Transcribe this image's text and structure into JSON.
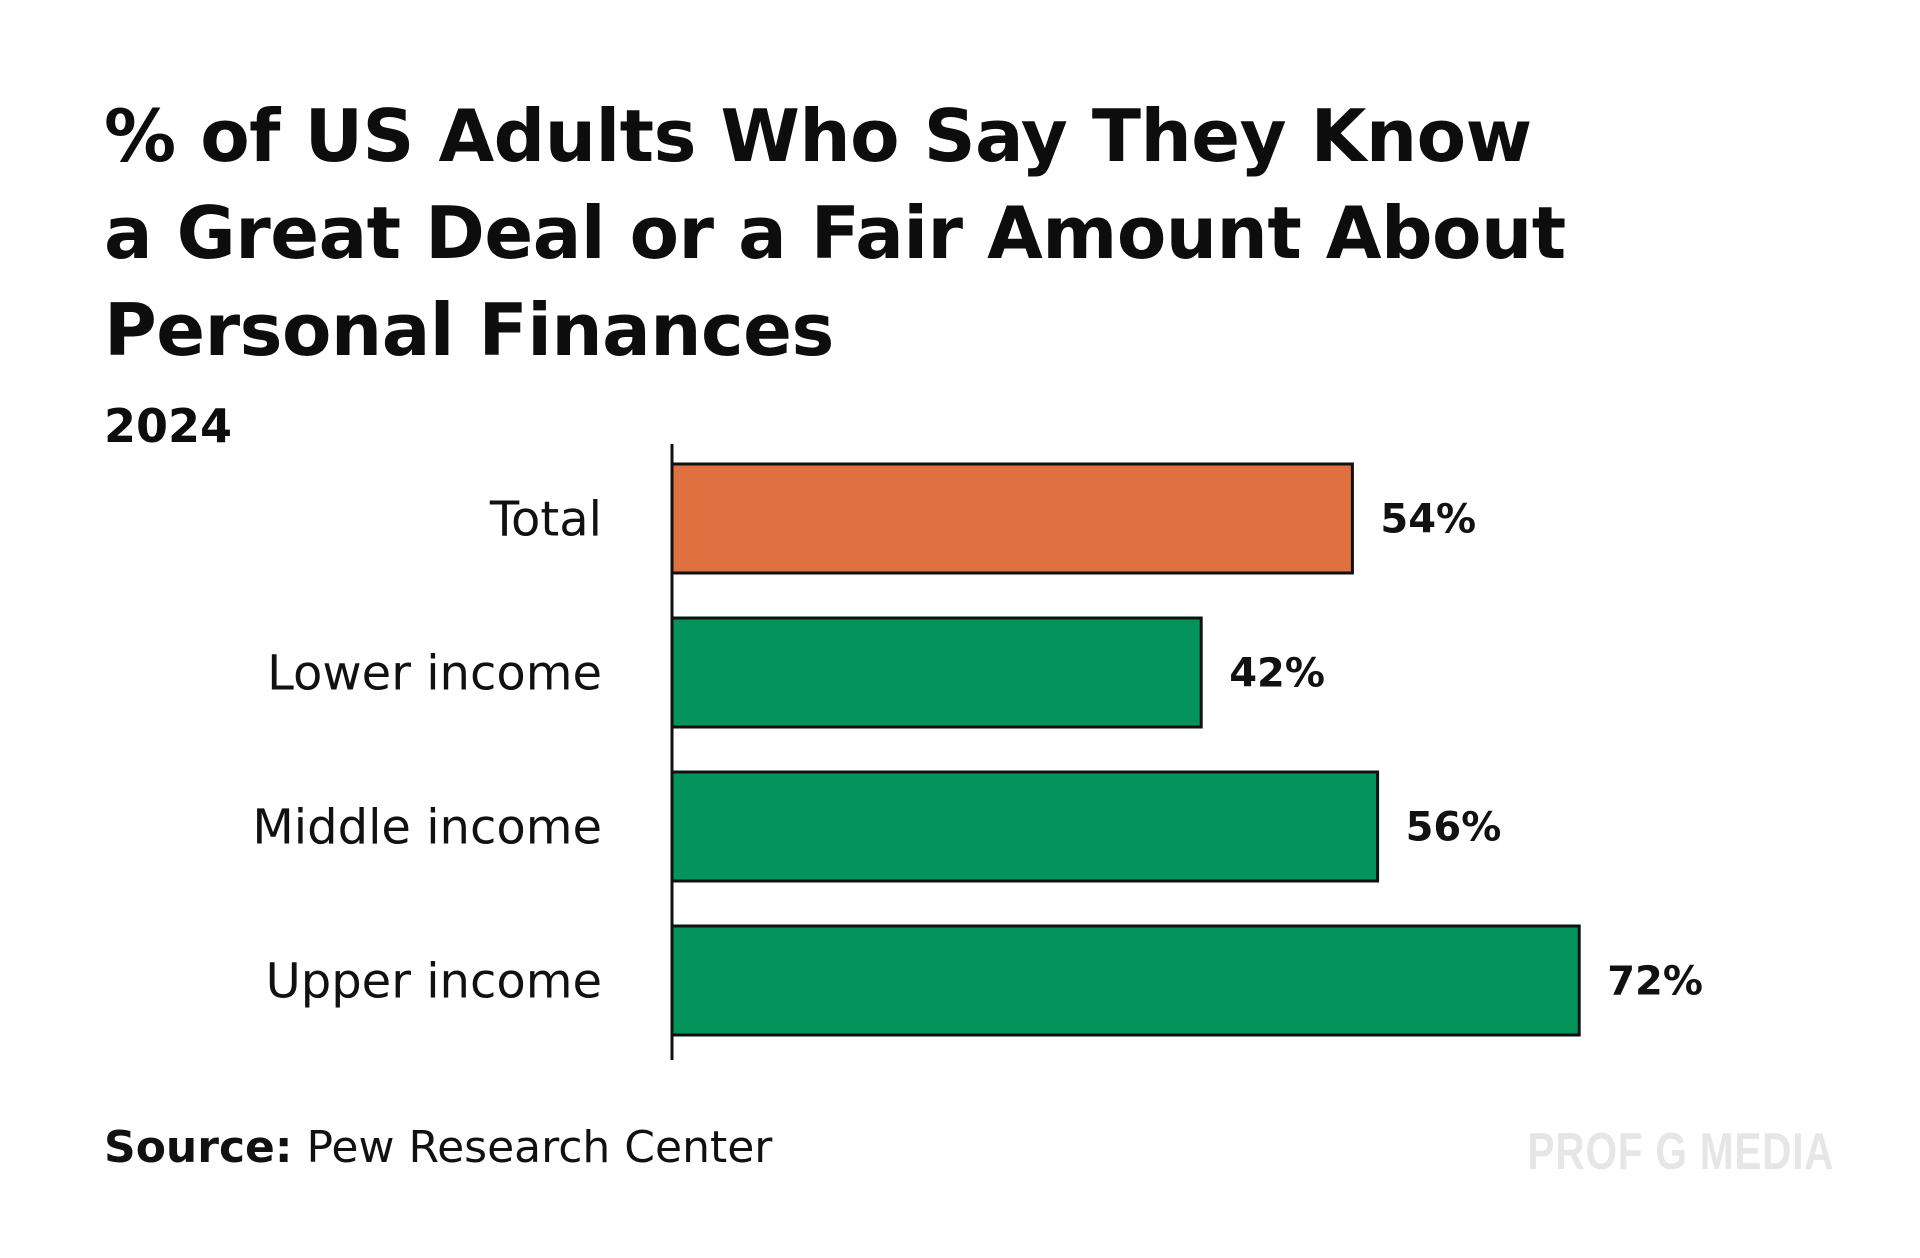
{
  "chart_data": {
    "type": "bar",
    "orientation": "horizontal",
    "title": "% of US Adults Who Say They Know a Great Deal or a Fair Amount About Personal Finances",
    "subtitle": "2024",
    "categories": [
      "Total",
      "Lower income",
      "Middle income",
      "Upper income"
    ],
    "values": [
      54,
      42,
      56,
      72
    ],
    "value_labels": [
      "54%",
      "42%",
      "56%",
      "72%"
    ],
    "unit": "%",
    "xlim": [
      0,
      100
    ],
    "grid": false,
    "legend": "none",
    "bar_colors": [
      "#e07040",
      "#05935c",
      "#05935c",
      "#05935c"
    ],
    "bar_outline_color": "#111111"
  },
  "source": {
    "label": "Source:",
    "text": "Pew Research Center"
  },
  "brand": {
    "text": "PROF G MEDIA",
    "color": "#e6e6e6"
  }
}
